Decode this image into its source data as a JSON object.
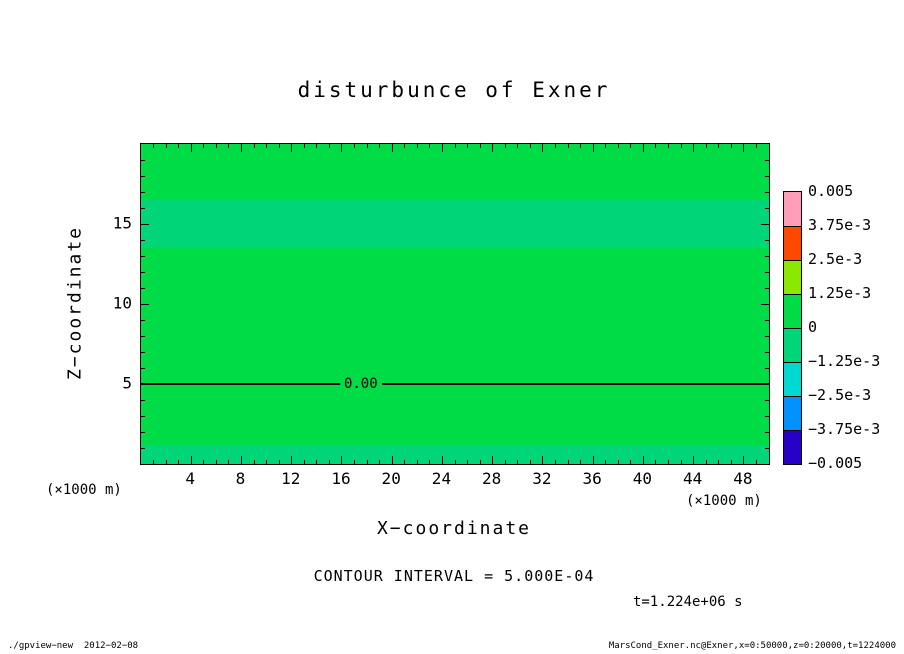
{
  "title": "disturbunce of Exner",
  "axes": {
    "x": {
      "label": "X−coordinate",
      "unit_left": "(×1000 m)",
      "unit_right": "(×1000 m)"
    },
    "y": {
      "label": "Z−coordinate"
    }
  },
  "contour": {
    "interval_text": "CONTOUR INTERVAL = 5.000E-04",
    "zero_label": "0.00"
  },
  "time_text": "t=1.224e+06 s",
  "footer": {
    "left": "./gpview−new  2012−02−08",
    "right": "MarsCond_Exner.nc@Exner,x=0:50000,z=0:20000,t=1224000"
  },
  "field": {
    "base_color": "#00dc46",
    "band_color": "#00d578",
    "bands": [
      {
        "z_from": 13.5,
        "z_to": 16.5
      },
      {
        "z_from": 0.0,
        "z_to": 1.2
      }
    ]
  },
  "colorbar": {
    "labels": [
      "0.005",
      "3.75e-3",
      "2.5e-3",
      "1.25e-3",
      "0",
      "−1.25e-3",
      "−2.5e-3",
      "−3.75e-3",
      "−0.005"
    ],
    "colors": [
      "#ff9eb5",
      "#ff4800",
      "#8ae800",
      "#00dc46",
      "#00d578",
      "#00d8d2",
      "#0090ff",
      "#2800c8"
    ]
  },
  "chart_data": {
    "type": "heatmap",
    "title": "disturbunce of Exner",
    "xlabel": "X-coordinate (×1000 m)",
    "ylabel": "Z-coordinate (×1000 m)",
    "xlim": [
      0,
      50
    ],
    "ylim": [
      0,
      20
    ],
    "x_ticks": [
      4,
      8,
      12,
      16,
      20,
      24,
      28,
      32,
      36,
      40,
      44,
      48
    ],
    "y_ticks": [
      5,
      10,
      15
    ],
    "x_minor_step": 1,
    "y_minor_step": 1,
    "x_major_step": 4,
    "y_major_step": 5,
    "contour_interval": 0.0005,
    "zero_contour": {
      "z": 5,
      "label": "0.00",
      "label_x": 17.5
    },
    "colorbar_levels": [
      0.005,
      0.00375,
      0.0025,
      0.00125,
      0,
      -0.00125,
      -0.0025,
      -0.00375,
      -0.005
    ],
    "legend_position": "right",
    "grid": false,
    "time": "t=1.224e+06 s",
    "field_summary": "Exner function disturbance is near zero everywhere (|value| < 1.25e-3); zero contour runs horizontally at z = 5 (×1000 m); slightly negative horizontal bands near z = 13.5–16.5 and z = 0–1.2."
  }
}
